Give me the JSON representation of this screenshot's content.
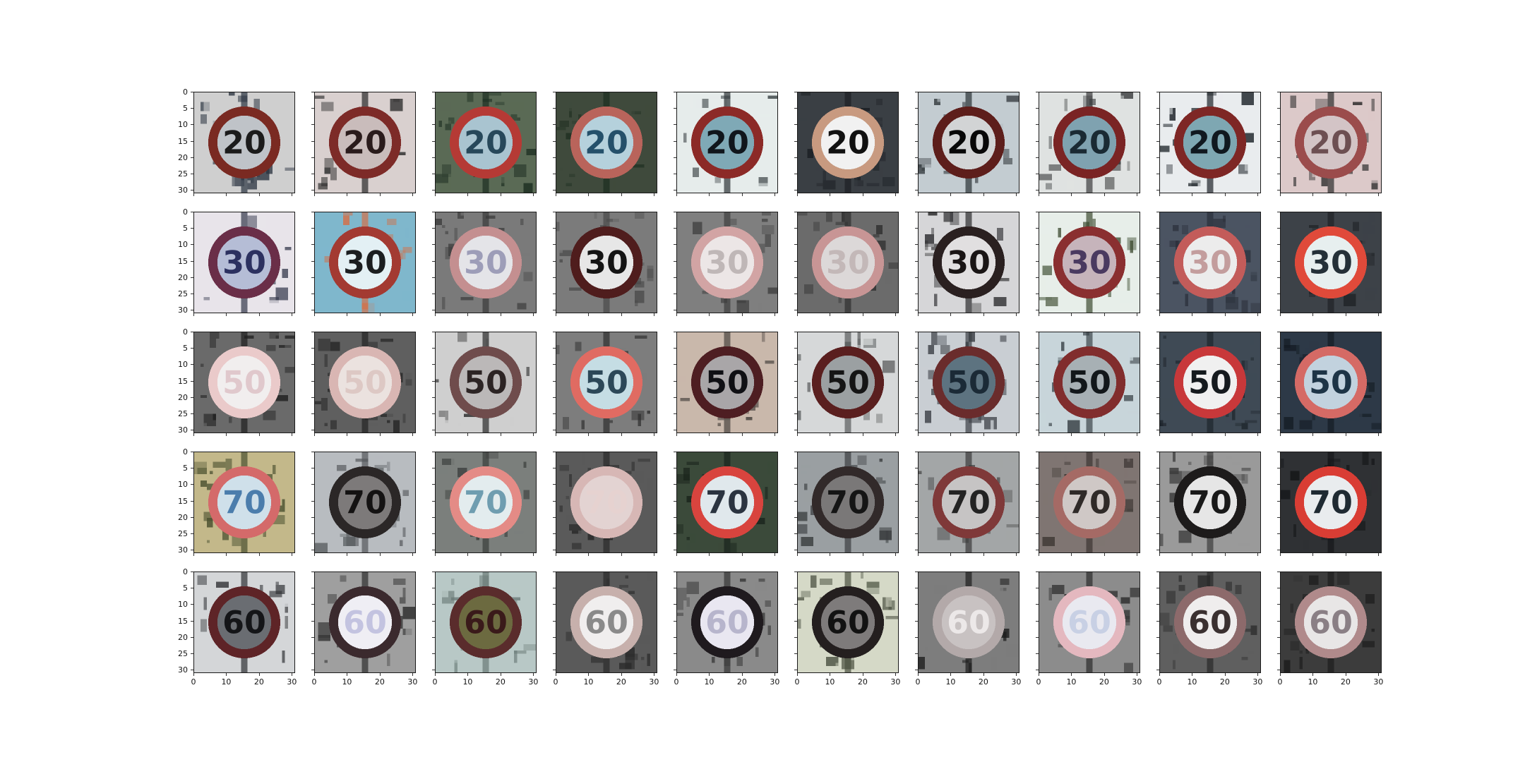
{
  "figure": {
    "rows": 5,
    "cols": 10,
    "tick_values": [
      "0",
      "5",
      "10",
      "15",
      "20",
      "25",
      "30"
    ],
    "x_tick_values": [
      "0",
      "10",
      "20",
      "30"
    ]
  },
  "rows": [
    {
      "number": "20",
      "cells": [
        {
          "bg": "#cfcfcf",
          "dark": "#2a3340",
          "ring": "#7a2a22",
          "face": "#bfc3c8",
          "digits": "#1b1b1b"
        },
        {
          "bg": "#d9d0cf",
          "dark": "#2a2a2a",
          "ring": "#7d2b28",
          "face": "#c9bcbb",
          "digits": "#2a1b1b"
        },
        {
          "bg": "#5a6a55",
          "dark": "#1d2f22",
          "ring": "#b53a35",
          "face": "#a9c4d0",
          "digits": "#27485a"
        },
        {
          "bg": "#3f4a3c",
          "dark": "#1c2d1f",
          "ring": "#b9645b",
          "face": "#b5d1dc",
          "digits": "#24506a"
        },
        {
          "bg": "#e6eceb",
          "dark": "#2d3438",
          "ring": "#8c2a27",
          "face": "#7fa9b6",
          "digits": "#10161c"
        },
        {
          "bg": "#3a3f44",
          "dark": "#1c1f24",
          "ring": "#c89a80",
          "face": "#f1f1f1",
          "digits": "#111111"
        },
        {
          "bg": "#c3ccd1",
          "dark": "#2a3034",
          "ring": "#5d1e1b",
          "face": "#d2d4d5",
          "digits": "#080808"
        },
        {
          "bg": "#dfe2e1",
          "dark": "#3a3c3d",
          "ring": "#7a2424",
          "face": "#7fa2b0",
          "digits": "#1a2a33"
        },
        {
          "bg": "#e9ecee",
          "dark": "#1c2228",
          "ring": "#7e2725",
          "face": "#7ea7b2",
          "digits": "#10181f"
        },
        {
          "bg": "#dcc9c9",
          "dark": "#2b2b2b",
          "ring": "#9b4c4c",
          "face": "#d3c4c6",
          "digits": "#6d4f52"
        }
      ]
    },
    {
      "number": "30",
      "cells": [
        {
          "bg": "#e8e4ea",
          "dark": "#33374a",
          "ring": "#6a2e48",
          "face": "#b5bdd6",
          "digits": "#2c3160"
        },
        {
          "bg": "#7fb7cc",
          "dark": "#d2714a",
          "ring": "#a33a32",
          "face": "#e3f0f4",
          "digits": "#1b1e20"
        },
        {
          "bg": "#7a7a7a",
          "dark": "#3a3a3a",
          "ring": "#c48f90",
          "face": "#e4e4e8",
          "digits": "#9d9db8"
        },
        {
          "bg": "#7b7b7b",
          "dark": "#4a4a4a",
          "ring": "#4f1d1d",
          "face": "#e7e7e7",
          "digits": "#141414"
        },
        {
          "bg": "#7f7f7f",
          "dark": "#3d3d3d",
          "ring": "#d2a4a4",
          "face": "#ece6e6",
          "digits": "#bfb7b7"
        },
        {
          "bg": "#6b6b6b",
          "dark": "#2f2f2f",
          "ring": "#c89595",
          "face": "#dcd8d8",
          "digits": "#c3b8b8"
        },
        {
          "bg": "#d6d6d8",
          "dark": "#2b2b2d",
          "ring": "#2a2020",
          "face": "#e1dfe0",
          "digits": "#1a1515"
        },
        {
          "bg": "#e7eee9",
          "dark": "#3c4a2f",
          "ring": "#8a2f30",
          "face": "#c6b4bb",
          "digits": "#4a3a60"
        },
        {
          "bg": "#4b5462",
          "dark": "#2a2f3a",
          "ring": "#c35c5a",
          "face": "#ececec",
          "digits": "#c39d9d"
        },
        {
          "bg": "#3d4248",
          "dark": "#1f2226",
          "ring": "#e04a3a",
          "face": "#e7efef",
          "digits": "#243038"
        }
      ]
    },
    {
      "number": "50",
      "cells": [
        {
          "bg": "#6a6a6a",
          "dark": "#1f1f1f",
          "ring": "#eacaca",
          "face": "#f1eeee",
          "digits": "#e0c8cc"
        },
        {
          "bg": "#5f5f5f",
          "dark": "#242424",
          "ring": "#d9b6b3",
          "face": "#ebe2df",
          "digits": "#ddc8c4"
        },
        {
          "bg": "#cfcfcf",
          "dark": "#2a2a2a",
          "ring": "#6f4c4c",
          "face": "#bbb8b8",
          "digits": "#2c2424"
        },
        {
          "bg": "#7d7d7d",
          "dark": "#2d2d2d",
          "ring": "#e06b62",
          "face": "#c5dde4",
          "digits": "#2c4858"
        },
        {
          "bg": "#c9b8ab",
          "dark": "#4a4440",
          "ring": "#4e1e22",
          "face": "#a9a6a8",
          "digits": "#101014"
        },
        {
          "bg": "#d6d8d9",
          "dark": "#5a5c5d",
          "ring": "#5a1f1f",
          "face": "#9ba0a2",
          "digits": "#151515"
        },
        {
          "bg": "#c9ced3",
          "dark": "#3b3f45",
          "ring": "#6a2c2c",
          "face": "#5d7380",
          "digits": "#1b2a36"
        },
        {
          "bg": "#c8d5da",
          "dark": "#3a4348",
          "ring": "#812d2d",
          "face": "#a7b0b4",
          "digits": "#12171a"
        },
        {
          "bg": "#3f4a55",
          "dark": "#1e252c",
          "ring": "#c8383a",
          "face": "#f0f0f0",
          "digits": "#151a1e"
        },
        {
          "bg": "#2d3947",
          "dark": "#141b23",
          "ring": "#d56a65",
          "face": "#c2d2de",
          "digits": "#1d3446"
        }
      ]
    },
    {
      "number": "70",
      "cells": [
        {
          "bg": "#c3b88a",
          "dark": "#4a5030",
          "ring": "#d46a6a",
          "face": "#cfe0ea",
          "digits": "#4b7dac"
        },
        {
          "bg": "#b8bcc0",
          "dark": "#55595c",
          "ring": "#2b2727",
          "face": "#7d7a7a",
          "digits": "#141212"
        },
        {
          "bg": "#7b7f7c",
          "dark": "#3a3d3b",
          "ring": "#e48b86",
          "face": "#e3ecee",
          "digits": "#6f9db0"
        },
        {
          "bg": "#5a5a5a",
          "dark": "#2a2a2a",
          "ring": "#d7b7b5",
          "face": "#e3d3d2",
          "digits": "#e6d2d0"
        },
        {
          "bg": "#3b4a3a",
          "dark": "#1a241c",
          "ring": "#d8443e",
          "face": "#e0e8ec",
          "digits": "#2b3440"
        },
        {
          "bg": "#9a9fa2",
          "dark": "#3c3f41",
          "ring": "#322a2a",
          "face": "#7a7878",
          "digits": "#151515"
        },
        {
          "bg": "#a3a6a7",
          "dark": "#3a3a3a",
          "ring": "#7f3939",
          "face": "#c6c4c4",
          "digits": "#232323"
        },
        {
          "bg": "#7f7572",
          "dark": "#3c3532",
          "ring": "#a56a65",
          "face": "#cfc8c6",
          "digits": "#2f2a28"
        },
        {
          "bg": "#9a9a9a",
          "dark": "#3c3c3c",
          "ring": "#1d1b1b",
          "face": "#e6e6e6",
          "digits": "#191919"
        },
        {
          "bg": "#2f3134",
          "dark": "#151719",
          "ring": "#d93d34",
          "face": "#e9ecee",
          "digits": "#1f2a32"
        }
      ]
    },
    {
      "number": "60",
      "cells": [
        {
          "bg": "#d4d6d8",
          "dark": "#2f3134",
          "ring": "#5e2427",
          "face": "#6a6d72",
          "digits": "#141518"
        },
        {
          "bg": "#9f9f9f",
          "dark": "#2f2f2f",
          "ring": "#3b2a2e",
          "face": "#efeef4",
          "digits": "#c3c3e0"
        },
        {
          "bg": "#b8c8c6",
          "dark": "#6b7b78",
          "ring": "#5a2c2c",
          "face": "#6c6a40",
          "digits": "#3a1a1a"
        },
        {
          "bg": "#5a5a5a",
          "dark": "#2a2a2a",
          "ring": "#c7b0ac",
          "face": "#f0eeee",
          "digits": "#8a8a8a"
        },
        {
          "bg": "#8a8a8a",
          "dark": "#353535",
          "ring": "#1f1a1e",
          "face": "#e9e7f1",
          "digits": "#b7b5cc"
        },
        {
          "bg": "#d5d9c7",
          "dark": "#4a5040",
          "ring": "#241f1f",
          "face": "#7e7b7b",
          "digits": "#121212"
        },
        {
          "bg": "#7d7d7d",
          "dark": "#1c1c1c",
          "ring": "#b3a9a9",
          "face": "#c8c2c2",
          "digits": "#ece8e8"
        },
        {
          "bg": "#8c8c8c",
          "dark": "#2b2b2b",
          "ring": "#e4b8bf",
          "face": "#e9e9f0",
          "digits": "#c8d0e4"
        },
        {
          "bg": "#5f5f5f",
          "dark": "#2a2a2a",
          "ring": "#8d6a6b",
          "face": "#efeded",
          "digits": "#3a3030"
        },
        {
          "bg": "#3c3c3c",
          "dark": "#1c1c1c",
          "ring": "#b08a8b",
          "face": "#e8e6e6",
          "digits": "#8a7f85"
        }
      ]
    }
  ]
}
